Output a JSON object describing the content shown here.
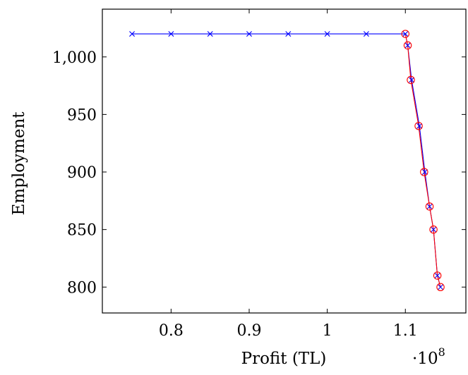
{
  "chart_data": {
    "type": "line",
    "xlabel": "Profit (TL)",
    "ylabel": "Employment",
    "x_scale_label": "·10",
    "x_scale_exponent": "8",
    "x_tick_values": [
      0.8,
      0.9,
      1.0,
      1.1
    ],
    "x_tick_labels": [
      "0.8",
      "0.9",
      "1",
      "1.1"
    ],
    "y_tick_values": [
      800,
      850,
      900,
      950,
      1000
    ],
    "y_tick_labels": [
      "800",
      "850",
      "900",
      "950",
      "1,000"
    ],
    "xlim": [
      0.712,
      1.1775
    ],
    "ylim": [
      777.5,
      1041.5
    ],
    "grid": false,
    "series": [
      {
        "color": "#0000ff",
        "marker": "x",
        "x": [
          0.75,
          0.8,
          0.85,
          0.9,
          0.95,
          1.0,
          1.05,
          1.1,
          1.103,
          1.108,
          1.118,
          1.125,
          1.131,
          1.136,
          1.141,
          1.145
        ],
        "y": [
          1020,
          1020,
          1020,
          1020,
          1020,
          1020,
          1020,
          1020,
          1010,
          980,
          940,
          900,
          870,
          850,
          810,
          800
        ]
      },
      {
        "color": "#ff0000",
        "marker": "o",
        "x": [
          1.1,
          1.103,
          1.107,
          1.117,
          1.124,
          1.131,
          1.136,
          1.141,
          1.145
        ],
        "y": [
          1020,
          1010,
          980,
          940,
          900,
          870,
          850,
          810,
          800
        ]
      }
    ]
  }
}
